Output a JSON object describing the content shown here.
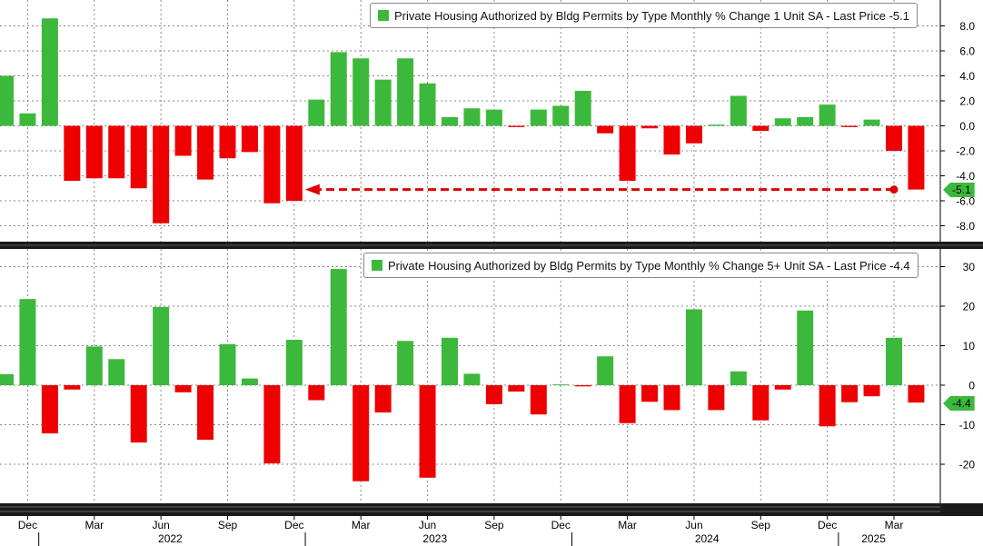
{
  "colors": {
    "positive": "#3cb93c",
    "negative": "#ee0000",
    "background": "#ffffff",
    "grid": "#888888",
    "arrow": "#e00000"
  },
  "chart_data": [
    {
      "type": "bar",
      "legend": "Private Housing Authorized by Bldg Permits by Type Monthly % Change 1 Unit SA - Last Price -5.1",
      "last_value_label": "-5.1",
      "ylim": [
        -9.5,
        10
      ],
      "yticks": [
        8,
        6,
        4,
        2,
        0,
        -2,
        -4,
        -6,
        -8
      ],
      "ytick_labels": [
        "8.0",
        "6.0",
        "4.0",
        "2.0",
        "0.0",
        "-2.0",
        "-4.0",
        "-6.0",
        "-8.0"
      ],
      "annotation": "dashed arrow from Mar 2025 back to Dec 2022 at -5.1",
      "categories": [
        "2021-11",
        "2021-12",
        "2022-01",
        "2022-02",
        "2022-03",
        "2022-04",
        "2022-05",
        "2022-06",
        "2022-07",
        "2022-08",
        "2022-09",
        "2022-10",
        "2022-11",
        "2022-12",
        "2023-01",
        "2023-02",
        "2023-03",
        "2023-04",
        "2023-05",
        "2023-06",
        "2023-07",
        "2023-08",
        "2023-09",
        "2023-10",
        "2023-11",
        "2023-12",
        "2024-01",
        "2024-02",
        "2024-03",
        "2024-04",
        "2024-05",
        "2024-06",
        "2024-07",
        "2024-08",
        "2024-09",
        "2024-10",
        "2024-11",
        "2024-12",
        "2025-01",
        "2025-02",
        "2025-03",
        "2025-04"
      ],
      "values": [
        4.0,
        1.0,
        8.6,
        -4.4,
        -4.2,
        -4.2,
        -5.0,
        -7.8,
        -2.4,
        -4.3,
        -2.6,
        -2.1,
        -6.2,
        -6.0,
        2.1,
        5.9,
        5.4,
        3.7,
        5.4,
        3.4,
        0.7,
        1.4,
        1.3,
        -0.1,
        1.3,
        1.6,
        2.8,
        -0.6,
        -4.4,
        -0.2,
        -2.3,
        -1.4,
        0.1,
        2.4,
        -0.4,
        0.6,
        0.7,
        1.7,
        -0.1,
        0.5,
        -2.0,
        -5.1
      ]
    },
    {
      "type": "bar",
      "legend": "Private Housing Authorized by Bldg Permits by Type Monthly % Change 5+ Unit SA - Last Price -4.4",
      "last_value_label": "-4.4",
      "ylim": [
        -31,
        33
      ],
      "yticks": [
        30,
        20,
        10,
        0,
        -10,
        -20
      ],
      "ytick_labels": [
        "30",
        "20",
        "10",
        "0",
        "-10",
        "-20"
      ],
      "categories": [
        "2021-11",
        "2021-12",
        "2022-01",
        "2022-02",
        "2022-03",
        "2022-04",
        "2022-05",
        "2022-06",
        "2022-07",
        "2022-08",
        "2022-09",
        "2022-10",
        "2022-11",
        "2022-12",
        "2023-01",
        "2023-02",
        "2023-03",
        "2023-04",
        "2023-05",
        "2023-06",
        "2023-07",
        "2023-08",
        "2023-09",
        "2023-10",
        "2023-11",
        "2023-12",
        "2024-01",
        "2024-02",
        "2024-03",
        "2024-04",
        "2024-05",
        "2024-06",
        "2024-07",
        "2024-08",
        "2024-09",
        "2024-10",
        "2024-11",
        "2024-12",
        "2025-01",
        "2025-02",
        "2025-03",
        "2025-04"
      ],
      "values": [
        2.8,
        21.8,
        -12.2,
        -1.1,
        9.8,
        6.6,
        -14.5,
        19.8,
        -1.8,
        -13.8,
        10.4,
        1.7,
        -19.8,
        11.5,
        -3.8,
        29.4,
        -24.3,
        -6.9,
        11.2,
        -23.4,
        12.0,
        2.9,
        -4.8,
        -1.6,
        -7.4,
        0.2,
        -0.3,
        7.3,
        -9.6,
        -4.2,
        -6.3,
        19.2,
        -6.3,
        3.5,
        -8.9,
        -1.1,
        18.9,
        -10.4,
        -4.3,
        -2.8,
        12.0,
        -4.4
      ]
    }
  ],
  "x_axis": {
    "month_labels": [
      "Dec",
      "Mar",
      "Jun",
      "Sep",
      "Dec",
      "Mar",
      "Jun",
      "Sep",
      "Dec",
      "Mar",
      "Jun",
      "Sep",
      "Dec",
      "Mar"
    ],
    "year_labels": [
      "2022",
      "2023",
      "2024",
      "2025"
    ]
  }
}
